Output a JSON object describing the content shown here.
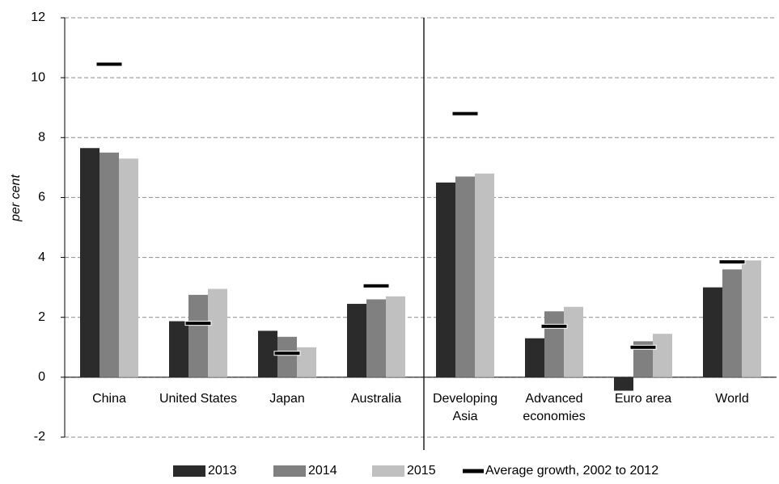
{
  "chart_data": {
    "type": "bar",
    "y_label": "per cent",
    "categories": [
      "China",
      "United States",
      "Japan",
      "Australia",
      "Developing Asia",
      "Advanced economies",
      "Euro area",
      "World"
    ],
    "series": [
      {
        "name": "2013",
        "color": "#2b2b2b",
        "values": [
          7.65,
          1.87,
          1.55,
          2.45,
          6.5,
          1.3,
          -0.45,
          3.0
        ]
      },
      {
        "name": "2014",
        "color": "#808080",
        "values": [
          7.5,
          2.75,
          1.35,
          2.6,
          6.7,
          2.2,
          1.2,
          3.6
        ]
      },
      {
        "name": "2015",
        "color": "#c0c0c0",
        "values": [
          7.3,
          2.95,
          1.0,
          2.7,
          6.8,
          2.35,
          1.45,
          3.9
        ]
      },
      {
        "name": "Average growth, 2002 to 2012",
        "color": "#000000",
        "style": "marker",
        "values": [
          10.45,
          1.8,
          0.8,
          3.05,
          8.8,
          1.7,
          1.0,
          3.85
        ]
      }
    ],
    "ylim": [
      -2,
      12
    ],
    "yticks": [
      -2,
      0,
      2,
      4,
      6,
      8,
      10,
      12
    ],
    "grid": true,
    "legend": "bottom"
  }
}
